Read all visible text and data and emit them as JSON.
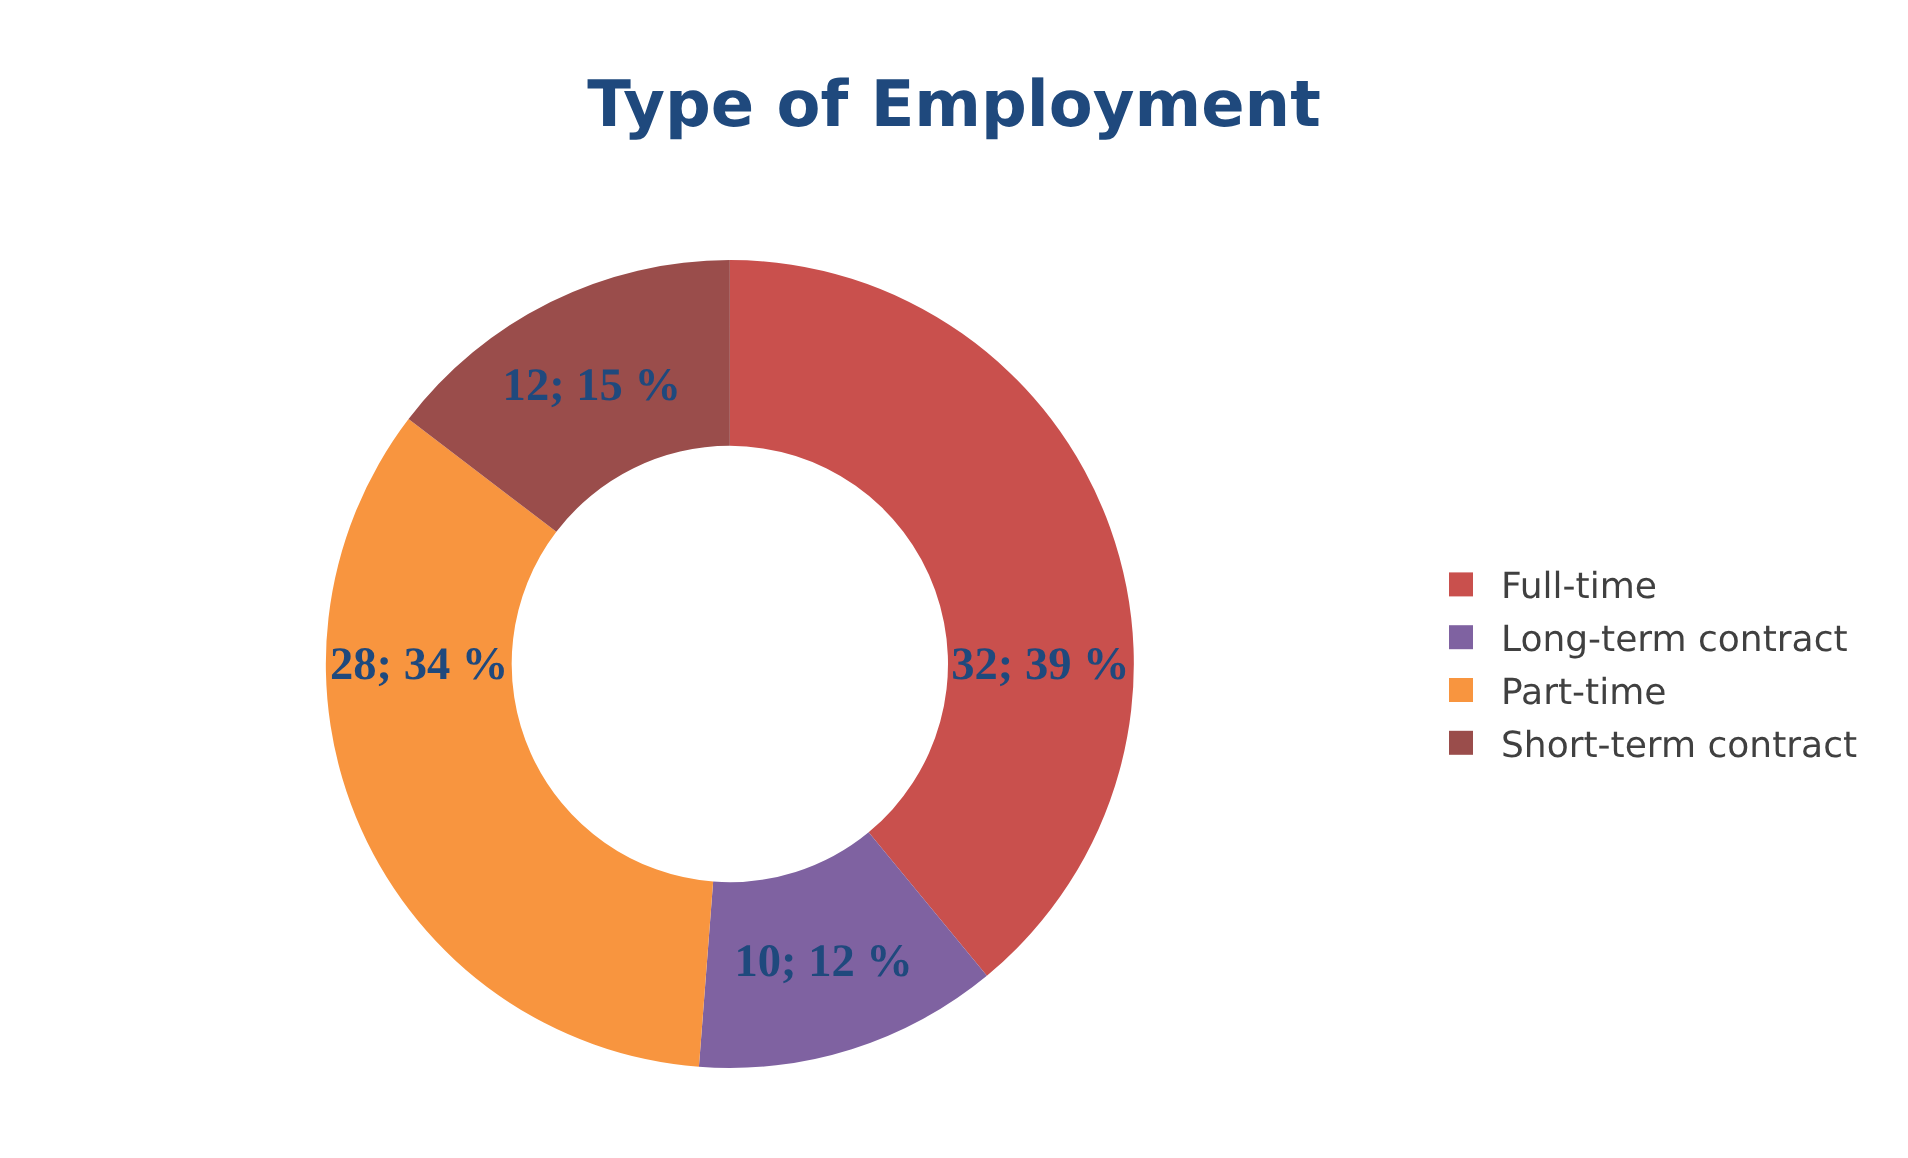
{
  "chart_data": {
    "type": "donut",
    "title": "Type of Employment",
    "categories": [
      "Full-time",
      "Long-term contract",
      "Part-time",
      "Short-term contract"
    ],
    "values": [
      32,
      10,
      28,
      12
    ],
    "value_labels": [
      "32; 39 %",
      "10; 12 %",
      "28; 34 %",
      "12; 15 %"
    ],
    "colors": [
      "#c9504d",
      "#7f62a1",
      "#f8953f",
      "#9a4d4b"
    ],
    "legend": "right"
  }
}
